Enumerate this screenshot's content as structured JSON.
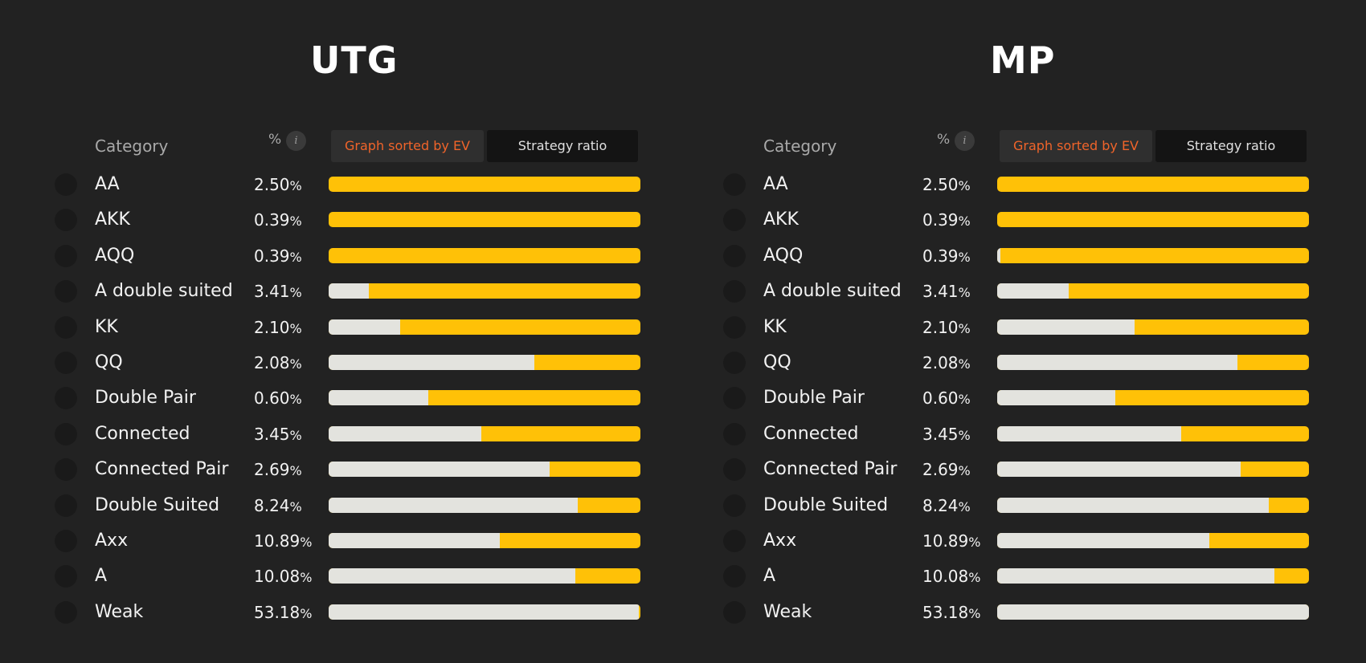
{
  "colors": {
    "background": "#222222",
    "bar_gray": "#e3e3de",
    "bar_yellow": "#ffc107",
    "tab_active_text": "#f0642a"
  },
  "headers": {
    "category": "Category",
    "percent": "%",
    "info_icon": "i",
    "tab_ev": "Graph sorted by EV",
    "tab_ratio": "Strategy ratio"
  },
  "panels": [
    {
      "title": "UTG",
      "rows": [
        {
          "category": "AA",
          "pct": "2.50",
          "unit": "%",
          "gray_fraction": 0.0
        },
        {
          "category": "AKK",
          "pct": "0.39",
          "unit": "%",
          "gray_fraction": 0.0
        },
        {
          "category": "AQQ",
          "pct": "0.39",
          "unit": "%",
          "gray_fraction": 0.0
        },
        {
          "category": "A double suited",
          "pct": "3.41",
          "unit": "%",
          "gray_fraction": 0.13
        },
        {
          "category": "KK",
          "pct": "2.10",
          "unit": "%",
          "gray_fraction": 0.23
        },
        {
          "category": "QQ",
          "pct": "2.08",
          "unit": "%",
          "gray_fraction": 0.66
        },
        {
          "category": "Double Pair",
          "pct": "0.60",
          "unit": "%",
          "gray_fraction": 0.32
        },
        {
          "category": "Connected",
          "pct": "3.45",
          "unit": "%",
          "gray_fraction": 0.49
        },
        {
          "category": "Connected Pair",
          "pct": "2.69",
          "unit": "%",
          "gray_fraction": 0.71
        },
        {
          "category": "Double Suited",
          "pct": "8.24",
          "unit": "%",
          "gray_fraction": 0.8
        },
        {
          "category": "Axx",
          "pct": "10.89",
          "unit": "%",
          "gray_fraction": 0.55
        },
        {
          "category": "A",
          "pct": "10.08",
          "unit": "%",
          "gray_fraction": 0.79
        },
        {
          "category": "Weak",
          "pct": "53.18",
          "unit": "%",
          "gray_fraction": 0.995
        }
      ]
    },
    {
      "title": "MP",
      "rows": [
        {
          "category": "AA",
          "pct": "2.50",
          "unit": "%",
          "gray_fraction": 0.0
        },
        {
          "category": "AKK",
          "pct": "0.39",
          "unit": "%",
          "gray_fraction": 0.0
        },
        {
          "category": "AQQ",
          "pct": "0.39",
          "unit": "%",
          "gray_fraction": 0.01
        },
        {
          "category": "A double suited",
          "pct": "3.41",
          "unit": "%",
          "gray_fraction": 0.23
        },
        {
          "category": "KK",
          "pct": "2.10",
          "unit": "%",
          "gray_fraction": 0.44
        },
        {
          "category": "QQ",
          "pct": "2.08",
          "unit": "%",
          "gray_fraction": 0.77
        },
        {
          "category": "Double Pair",
          "pct": "0.60",
          "unit": "%",
          "gray_fraction": 0.38
        },
        {
          "category": "Connected",
          "pct": "3.45",
          "unit": "%",
          "gray_fraction": 0.59
        },
        {
          "category": "Connected Pair",
          "pct": "2.69",
          "unit": "%",
          "gray_fraction": 0.78
        },
        {
          "category": "Double Suited",
          "pct": "8.24",
          "unit": "%",
          "gray_fraction": 0.87
        },
        {
          "category": "Axx",
          "pct": "10.89",
          "unit": "%",
          "gray_fraction": 0.68
        },
        {
          "category": "A",
          "pct": "10.08",
          "unit": "%",
          "gray_fraction": 0.89
        },
        {
          "category": "Weak",
          "pct": "53.18",
          "unit": "%",
          "gray_fraction": 1.0
        }
      ]
    }
  ]
}
